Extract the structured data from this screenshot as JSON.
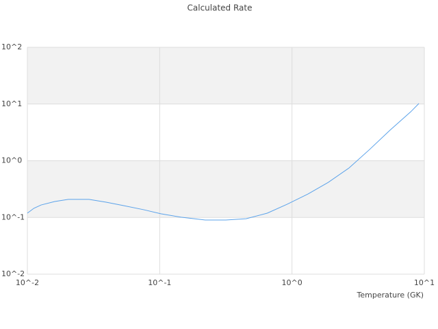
{
  "chart_data": {
    "type": "line",
    "title": "Calculated Rate",
    "xlabel": "Temperature (GK)",
    "xscale": "log",
    "yscale": "log",
    "grid": true,
    "xlim": [
      0.01,
      10
    ],
    "ylim": [
      0.01,
      100
    ],
    "xticks": [
      {
        "value": 0.01,
        "label": "10^-2"
      },
      {
        "value": 0.1,
        "label": "10^-1"
      },
      {
        "value": 1,
        "label": "10^0"
      },
      {
        "value": 10,
        "label": "10^1"
      }
    ],
    "yticks": [
      {
        "value": 0.01,
        "label": "10^-2"
      },
      {
        "value": 0.1,
        "label": "10^-1"
      },
      {
        "value": 1,
        "label": "10^0"
      },
      {
        "value": 10,
        "label": "10^1"
      },
      {
        "value": 100,
        "label": "10^2"
      }
    ],
    "x": [
      0.01,
      0.0112,
      0.0127,
      0.0161,
      0.0204,
      0.0292,
      0.0394,
      0.053,
      0.0756,
      0.102,
      0.145,
      0.221,
      0.316,
      0.45,
      0.65,
      0.92,
      1.32,
      1.88,
      2.7,
      3.86,
      5.5,
      7.9,
      9.1
    ],
    "series": [
      {
        "color": "#5aa2ea",
        "values": [
          0.119,
          0.145,
          0.166,
          0.191,
          0.208,
          0.208,
          0.186,
          0.162,
          0.137,
          0.116,
          0.101,
          0.09,
          0.09,
          0.095,
          0.119,
          0.171,
          0.259,
          0.416,
          0.746,
          1.58,
          3.45,
          7.3,
          10.2
        ]
      }
    ]
  }
}
